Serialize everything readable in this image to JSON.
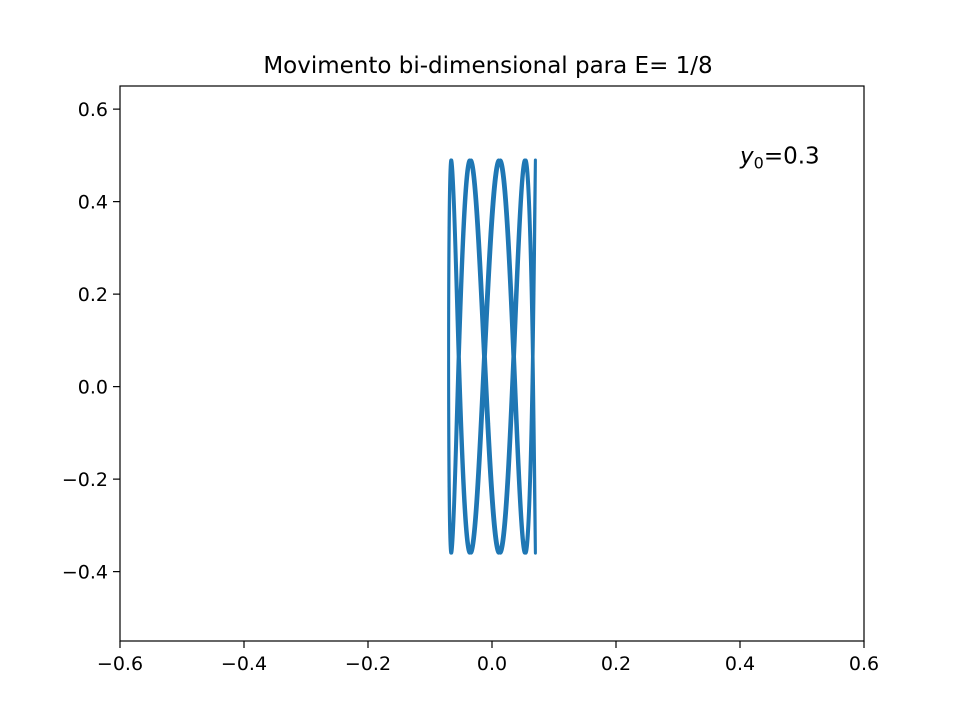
{
  "chart_data": {
    "type": "line",
    "title": "Movimento bi-dimensional para E= 1/8",
    "xlabel": "",
    "ylabel": "",
    "xlim": [
      -0.6,
      0.6
    ],
    "ylim": [
      -0.55,
      0.65
    ],
    "xticks": [
      -0.6,
      -0.4,
      -0.2,
      0.0,
      0.2,
      0.4,
      0.6
    ],
    "xtick_labels": [
      "−0.6",
      "−0.4",
      "−0.2",
      "0.0",
      "0.2",
      "0.4",
      "0.6"
    ],
    "yticks": [
      -0.4,
      -0.2,
      0.0,
      0.2,
      0.4,
      0.6
    ],
    "ytick_labels": [
      "−0.4",
      "−0.2",
      "0.0",
      "0.2",
      "0.4",
      "0.6"
    ],
    "grid": false,
    "annotation": {
      "symbol": "y",
      "subscript": "0",
      "text": "=0.3",
      "x": 0.4,
      "y": 0.5
    },
    "series": [
      {
        "color": "#1f77b4",
        "curve": {
          "kind": "lissajous",
          "x_amplitude": 0.07,
          "x_frequency": 1.0,
          "y_extent": [
            -0.36,
            0.49
          ],
          "y_frequency": 4.5,
          "t_range": [
            0,
            46
          ]
        }
      }
    ]
  }
}
